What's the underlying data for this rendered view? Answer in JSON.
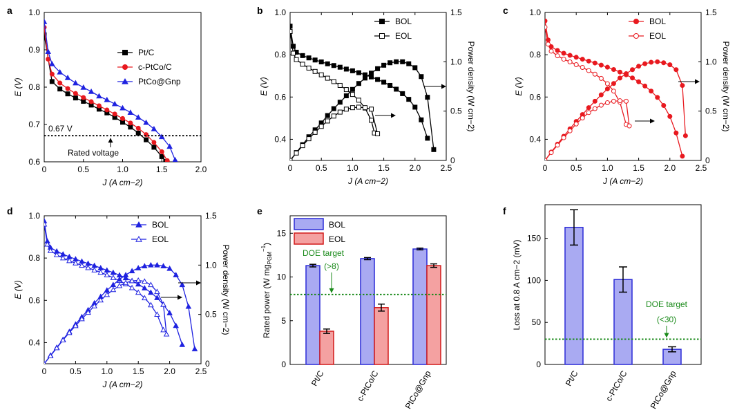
{
  "colors": {
    "ptc": "#000000",
    "cptco": "#e8191f",
    "ptcogn": "#1f22e0",
    "bol_bar_fill": "#a9aaf2",
    "bol_bar_edge": "#2a2ad6",
    "eol_bar_fill": "#f4a1a1",
    "eol_bar_edge": "#d21919",
    "doe": "#1a8a1a"
  },
  "chart_data": [
    {
      "panel": "a",
      "type": "line",
      "xlabel": "J (A cm−2)",
      "ylabel": "E (V)",
      "xlim": [
        0,
        2.0
      ],
      "ylim": [
        0.6,
        1.0
      ],
      "xticks": [
        "0",
        "0.5",
        "1.0",
        "1.5",
        "2.0"
      ],
      "yticks": [
        "0.6",
        "0.7",
        "0.8",
        "0.9",
        "1.0"
      ],
      "legend": [
        "Pt/C",
        "c-PtCo/C",
        "PtCo@Gnp"
      ],
      "annotations": {
        "rated_value": "0.67 V",
        "rated_label": "Rated voltage",
        "rated_y": 0.67
      },
      "series": [
        {
          "name": "Pt/C",
          "color_key": "ptc",
          "marker": "square",
          "x": [
            0,
            0.1,
            0.2,
            0.3,
            0.4,
            0.5,
            0.6,
            0.7,
            0.8,
            0.9,
            1.0,
            1.1,
            1.2,
            1.3,
            1.4,
            1.5,
            1.55
          ],
          "y": [
            0.94,
            0.815,
            0.795,
            0.782,
            0.771,
            0.762,
            0.752,
            0.741,
            0.731,
            0.719,
            0.706,
            0.693,
            0.677,
            0.659,
            0.639,
            0.614,
            0.601
          ]
        },
        {
          "name": "c-PtCo/C",
          "color_key": "cptco",
          "marker": "circle",
          "x": [
            0,
            0.05,
            0.1,
            0.2,
            0.3,
            0.4,
            0.5,
            0.6,
            0.7,
            0.8,
            0.9,
            1.0,
            1.1,
            1.2,
            1.3,
            1.4,
            1.5,
            1.57
          ],
          "y": [
            0.96,
            0.875,
            0.835,
            0.811,
            0.796,
            0.783,
            0.772,
            0.761,
            0.75,
            0.739,
            0.728,
            0.716,
            0.704,
            0.69,
            0.673,
            0.652,
            0.627,
            0.603
          ]
        },
        {
          "name": "PtCo@Gnp",
          "color_key": "ptcogn",
          "marker": "triangle",
          "x": [
            0,
            0.05,
            0.1,
            0.2,
            0.3,
            0.4,
            0.5,
            0.6,
            0.7,
            0.8,
            0.9,
            1.0,
            1.1,
            1.2,
            1.3,
            1.4,
            1.5,
            1.6,
            1.67
          ],
          "y": [
            0.975,
            0.895,
            0.862,
            0.84,
            0.825,
            0.811,
            0.799,
            0.788,
            0.776,
            0.766,
            0.755,
            0.744,
            0.732,
            0.719,
            0.705,
            0.688,
            0.667,
            0.641,
            0.605
          ]
        }
      ]
    },
    {
      "panel": "b",
      "type": "line",
      "xlabel": "J (A cm−2)",
      "ylabel": "E (V)",
      "y2label": "Power density (W cm−2)",
      "xlim": [
        0,
        2.5
      ],
      "ylim": [
        0.3,
        1.0
      ],
      "y2lim": [
        0,
        1.5
      ],
      "xticks": [
        "0",
        "0.5",
        "1.0",
        "1.5",
        "2.0",
        "2.5"
      ],
      "yticks": [
        "0.4",
        "0.6",
        "0.8",
        "1.0"
      ],
      "y2ticks": [
        "0",
        "0.5",
        "1.0",
        "1.5"
      ],
      "legend": [
        "BOL",
        "EOL"
      ],
      "series": [
        {
          "name": "BOL",
          "kind": "voltage",
          "color_key": "ptc",
          "marker": "square",
          "filled": true,
          "x": [
            0,
            0.05,
            0.1,
            0.2,
            0.3,
            0.4,
            0.5,
            0.6,
            0.7,
            0.8,
            0.9,
            1.0,
            1.1,
            1.2,
            1.3,
            1.4,
            1.5,
            1.6,
            1.7,
            1.8,
            1.9,
            2.0,
            2.1,
            2.2
          ],
          "y": [
            0.935,
            0.84,
            0.812,
            0.796,
            0.785,
            0.775,
            0.766,
            0.757,
            0.749,
            0.741,
            0.732,
            0.724,
            0.715,
            0.705,
            0.695,
            0.683,
            0.67,
            0.655,
            0.637,
            0.616,
            0.589,
            0.552,
            0.492,
            0.405
          ]
        },
        {
          "name": "EOL",
          "kind": "voltage",
          "color_key": "ptc",
          "marker": "square",
          "filled": false,
          "x": [
            0,
            0.05,
            0.1,
            0.2,
            0.3,
            0.4,
            0.5,
            0.6,
            0.7,
            0.8,
            0.9,
            1.0,
            1.1,
            1.2,
            1.3,
            1.35
          ],
          "y": [
            0.91,
            0.807,
            0.777,
            0.755,
            0.737,
            0.721,
            0.705,
            0.689,
            0.673,
            0.655,
            0.635,
            0.612,
            0.585,
            0.548,
            0.49,
            0.43
          ]
        },
        {
          "name": "BOL",
          "kind": "power",
          "color_key": "ptc",
          "marker": "square",
          "filled": true,
          "x": [
            0,
            0.1,
            0.2,
            0.3,
            0.4,
            0.5,
            0.6,
            0.7,
            0.8,
            0.9,
            1.0,
            1.1,
            1.2,
            1.3,
            1.4,
            1.5,
            1.6,
            1.7,
            1.8,
            1.9,
            2.0,
            2.1,
            2.2,
            2.3
          ],
          "y": [
            0,
            0.08,
            0.16,
            0.24,
            0.31,
            0.38,
            0.455,
            0.525,
            0.59,
            0.655,
            0.72,
            0.78,
            0.835,
            0.885,
            0.93,
            0.965,
            0.99,
            1.0,
            1.0,
            0.98,
            0.94,
            0.85,
            0.64,
            0.11
          ]
        },
        {
          "name": "EOL",
          "kind": "power",
          "color_key": "ptc",
          "marker": "square",
          "filled": false,
          "x": [
            0,
            0.1,
            0.2,
            0.3,
            0.4,
            0.5,
            0.6,
            0.7,
            0.8,
            0.9,
            1.0,
            1.1,
            1.2,
            1.3,
            1.4
          ],
          "y": [
            0,
            0.075,
            0.15,
            0.22,
            0.285,
            0.345,
            0.4,
            0.45,
            0.49,
            0.52,
            0.535,
            0.54,
            0.535,
            0.52,
            0.27
          ]
        }
      ]
    },
    {
      "panel": "c",
      "type": "line",
      "xlabel": "J (A cm−2)",
      "ylabel": "E (V)",
      "y2label": "Power density (W cm−2)",
      "xlim": [
        0,
        2.5
      ],
      "ylim": [
        0.3,
        1.0
      ],
      "y2lim": [
        0,
        1.5
      ],
      "xticks": [
        "0",
        "0.5",
        "1.0",
        "1.5",
        "2.0",
        "2.5"
      ],
      "yticks": [
        "0.4",
        "0.6",
        "0.8",
        "1.0"
      ],
      "y2ticks": [
        "0",
        "0.5",
        "1.0",
        "1.5"
      ],
      "legend": [
        "BOL",
        "EOL"
      ],
      "series": [
        {
          "name": "BOL",
          "kind": "voltage",
          "color_key": "cptco",
          "marker": "circle",
          "filled": true,
          "x": [
            0,
            0.05,
            0.1,
            0.2,
            0.3,
            0.4,
            0.5,
            0.6,
            0.7,
            0.8,
            0.9,
            1.0,
            1.1,
            1.2,
            1.3,
            1.4,
            1.5,
            1.6,
            1.7,
            1.8,
            1.9,
            2.0,
            2.1,
            2.2
          ],
          "y": [
            0.96,
            0.87,
            0.838,
            0.82,
            0.807,
            0.797,
            0.788,
            0.779,
            0.77,
            0.761,
            0.751,
            0.741,
            0.73,
            0.718,
            0.705,
            0.69,
            0.672,
            0.652,
            0.628,
            0.598,
            0.56,
            0.508,
            0.43,
            0.32
          ]
        },
        {
          "name": "EOL",
          "kind": "voltage",
          "color_key": "cptco",
          "marker": "circle",
          "filled": false,
          "x": [
            0,
            0.05,
            0.1,
            0.2,
            0.3,
            0.4,
            0.5,
            0.6,
            0.7,
            0.8,
            0.9,
            1.0,
            1.1,
            1.2,
            1.3
          ],
          "y": [
            0.93,
            0.85,
            0.817,
            0.795,
            0.779,
            0.766,
            0.753,
            0.74,
            0.725,
            0.708,
            0.688,
            0.663,
            0.628,
            0.575,
            0.47
          ]
        },
        {
          "name": "BOL",
          "kind": "power",
          "color_key": "cptco",
          "marker": "circle",
          "filled": true,
          "x": [
            0,
            0.1,
            0.2,
            0.3,
            0.4,
            0.5,
            0.6,
            0.7,
            0.8,
            0.9,
            1.0,
            1.1,
            1.2,
            1.3,
            1.4,
            1.5,
            1.6,
            1.7,
            1.8,
            1.9,
            2.0,
            2.1,
            2.2,
            2.25
          ],
          "y": [
            0,
            0.085,
            0.165,
            0.245,
            0.32,
            0.395,
            0.465,
            0.535,
            0.6,
            0.665,
            0.725,
            0.78,
            0.835,
            0.88,
            0.92,
            0.955,
            0.98,
            0.995,
            1.0,
            0.99,
            0.97,
            0.92,
            0.76,
            0.25
          ]
        },
        {
          "name": "EOL",
          "kind": "power",
          "color_key": "cptco",
          "marker": "circle",
          "filled": false,
          "x": [
            0,
            0.1,
            0.2,
            0.3,
            0.4,
            0.5,
            0.6,
            0.7,
            0.8,
            0.9,
            1.0,
            1.1,
            1.2,
            1.3,
            1.35
          ],
          "y": [
            0,
            0.08,
            0.155,
            0.23,
            0.3,
            0.37,
            0.43,
            0.485,
            0.525,
            0.56,
            0.585,
            0.6,
            0.605,
            0.6,
            0.35
          ]
        }
      ]
    },
    {
      "panel": "d",
      "type": "line",
      "xlabel": "J (A cm−2)",
      "ylabel": "E (V)",
      "y2label": "Power density (W cm−2)",
      "xlim": [
        0,
        2.5
      ],
      "ylim": [
        0.3,
        1.0
      ],
      "y2lim": [
        0,
        1.5
      ],
      "xticks": [
        "0",
        "0.5",
        "1.0",
        "1.5",
        "2.0",
        "2.5"
      ],
      "yticks": [
        "0.4",
        "0.6",
        "0.8",
        "1.0"
      ],
      "y2ticks": [
        "0",
        "0.5",
        "1.0",
        "1.5"
      ],
      "legend": [
        "BOL",
        "EOL"
      ],
      "series": [
        {
          "name": "BOL",
          "kind": "voltage",
          "color_key": "ptcogn",
          "marker": "triangle",
          "filled": true,
          "x": [
            0,
            0.05,
            0.1,
            0.2,
            0.3,
            0.4,
            0.5,
            0.6,
            0.7,
            0.8,
            0.9,
            1.0,
            1.1,
            1.2,
            1.3,
            1.4,
            1.5,
            1.6,
            1.7,
            1.8,
            1.9,
            2.0,
            2.1,
            2.2
          ],
          "y": [
            0.975,
            0.88,
            0.85,
            0.832,
            0.818,
            0.806,
            0.795,
            0.784,
            0.774,
            0.764,
            0.753,
            0.742,
            0.731,
            0.719,
            0.706,
            0.692,
            0.676,
            0.658,
            0.637,
            0.612,
            0.58,
            0.54,
            0.48,
            0.39
          ]
        },
        {
          "name": "EOL",
          "kind": "voltage",
          "color_key": "ptcogn",
          "marker": "triangle",
          "filled": false,
          "x": [
            0,
            0.05,
            0.1,
            0.2,
            0.3,
            0.4,
            0.5,
            0.6,
            0.7,
            0.8,
            0.9,
            1.0,
            1.1,
            1.2,
            1.3,
            1.4,
            1.5,
            1.6,
            1.7,
            1.8,
            1.9
          ],
          "y": [
            0.96,
            0.865,
            0.835,
            0.815,
            0.8,
            0.787,
            0.776,
            0.765,
            0.754,
            0.743,
            0.732,
            0.72,
            0.707,
            0.693,
            0.677,
            0.659,
            0.637,
            0.611,
            0.578,
            0.533,
            0.46
          ]
        },
        {
          "name": "BOL",
          "kind": "power",
          "color_key": "ptcogn",
          "marker": "triangle",
          "filled": true,
          "x": [
            0,
            0.1,
            0.2,
            0.3,
            0.4,
            0.5,
            0.6,
            0.7,
            0.8,
            0.9,
            1.0,
            1.1,
            1.2,
            1.3,
            1.4,
            1.5,
            1.6,
            1.7,
            1.8,
            1.9,
            2.0,
            2.1,
            2.2,
            2.3,
            2.4
          ],
          "y": [
            0,
            0.085,
            0.165,
            0.245,
            0.325,
            0.4,
            0.475,
            0.545,
            0.615,
            0.68,
            0.745,
            0.8,
            0.855,
            0.9,
            0.94,
            0.97,
            0.99,
            1.0,
            1.0,
            0.99,
            0.965,
            0.9,
            0.8,
            0.58,
            0.15
          ]
        },
        {
          "name": "EOL",
          "kind": "power",
          "color_key": "ptcogn",
          "marker": "triangle",
          "filled": false,
          "x": [
            0,
            0.1,
            0.2,
            0.3,
            0.4,
            0.5,
            0.6,
            0.7,
            0.8,
            0.9,
            1.0,
            1.1,
            1.2,
            1.3,
            1.4,
            1.5,
            1.6,
            1.7,
            1.8,
            1.9,
            1.95
          ],
          "y": [
            0,
            0.08,
            0.16,
            0.24,
            0.315,
            0.385,
            0.455,
            0.52,
            0.585,
            0.645,
            0.7,
            0.75,
            0.79,
            0.82,
            0.84,
            0.845,
            0.835,
            0.8,
            0.73,
            0.6,
            0.3
          ]
        }
      ]
    },
    {
      "panel": "e",
      "type": "bar",
      "ylabel": "Rated power (W mgPGM−1)",
      "ylabel_main": "Rated power (W mg",
      "ylabel_sub": "PGM",
      "ylabel_sup": "−1",
      "ylabel_end": ")",
      "categories": [
        "Pt/C",
        "c-PtCo/C",
        "PtCo@Gnp"
      ],
      "ylim": [
        0,
        17
      ],
      "yticks": [
        "0",
        "5",
        "10",
        "15"
      ],
      "legend": [
        "BOL",
        "EOL"
      ],
      "series": [
        {
          "name": "BOL",
          "values": [
            11.3,
            12.1,
            13.2
          ],
          "errors": [
            0.15,
            0.12,
            0.1
          ]
        },
        {
          "name": "EOL",
          "values": [
            3.8,
            6.5,
            11.3
          ],
          "errors": [
            0.25,
            0.4,
            0.2
          ]
        }
      ],
      "target": {
        "value": 8,
        "label": "DOE target",
        "sublabel": "(>8)"
      }
    },
    {
      "panel": "f",
      "type": "bar",
      "ylabel": "Loss at 0.8 A cm−2 (mV)",
      "categories": [
        "Pt/C",
        "c-PtCo/C",
        "PtCo@Gnp"
      ],
      "ylim": [
        0,
        190
      ],
      "yticks": [
        "0",
        "50",
        "100",
        "150"
      ],
      "series": [
        {
          "name": "Loss",
          "values": [
            163,
            101,
            18
          ],
          "errors": [
            21,
            15,
            3
          ]
        }
      ],
      "target": {
        "value": 30,
        "label": "DOE target",
        "sublabel": "(<30)"
      }
    }
  ]
}
